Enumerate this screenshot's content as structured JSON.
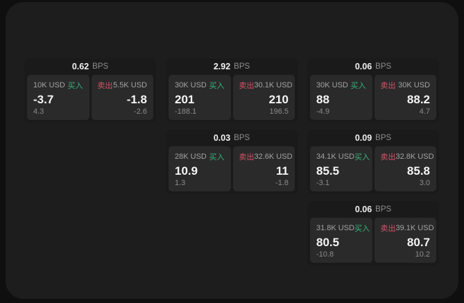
{
  "labels": {
    "bps_unit": "BPS",
    "buy": "买入",
    "sell": "卖出"
  },
  "colors": {
    "buy": "#36b377",
    "sell": "#cd5564",
    "surface": "#1d1d1e",
    "card": "#1a1a1a",
    "pane": "#2a2a2b"
  },
  "cards": [
    {
      "row": 0,
      "col": 0,
      "bps": "0.62",
      "buy": {
        "amount": "10K USD",
        "value": "-3.7",
        "delta": "4.3"
      },
      "sell": {
        "amount": "5.5K USD",
        "value": "-1.8",
        "delta": "-2.6"
      }
    },
    {
      "row": 0,
      "col": 1,
      "bps": "2.92",
      "buy": {
        "amount": "30K USD",
        "value": "201",
        "delta": "-188.1"
      },
      "sell": {
        "amount": "30.1K USD",
        "value": "210",
        "delta": "196.5"
      }
    },
    {
      "row": 0,
      "col": 2,
      "bps": "0.06",
      "buy": {
        "amount": "30K USD",
        "value": "88",
        "delta": "-4.9"
      },
      "sell": {
        "amount": "30K USD",
        "value": "88.2",
        "delta": "4.7"
      }
    },
    {
      "row": 1,
      "col": 1,
      "bps": "0.03",
      "buy": {
        "amount": "28K USD",
        "value": "10.9",
        "delta": "1.3"
      },
      "sell": {
        "amount": "32.6K USD",
        "value": "11",
        "delta": "-1.8"
      }
    },
    {
      "row": 1,
      "col": 2,
      "bps": "0.09",
      "buy": {
        "amount": "34.1K USD",
        "value": "85.5",
        "delta": "-3.1"
      },
      "sell": {
        "amount": "32.8K USD",
        "value": "85.8",
        "delta": "3.0"
      }
    },
    {
      "row": 2,
      "col": 2,
      "bps": "0.06",
      "buy": {
        "amount": "31.8K USD",
        "value": "80.5",
        "delta": "-10.8"
      },
      "sell": {
        "amount": "39.1K USD",
        "value": "80.7",
        "delta": "10.2"
      }
    }
  ]
}
